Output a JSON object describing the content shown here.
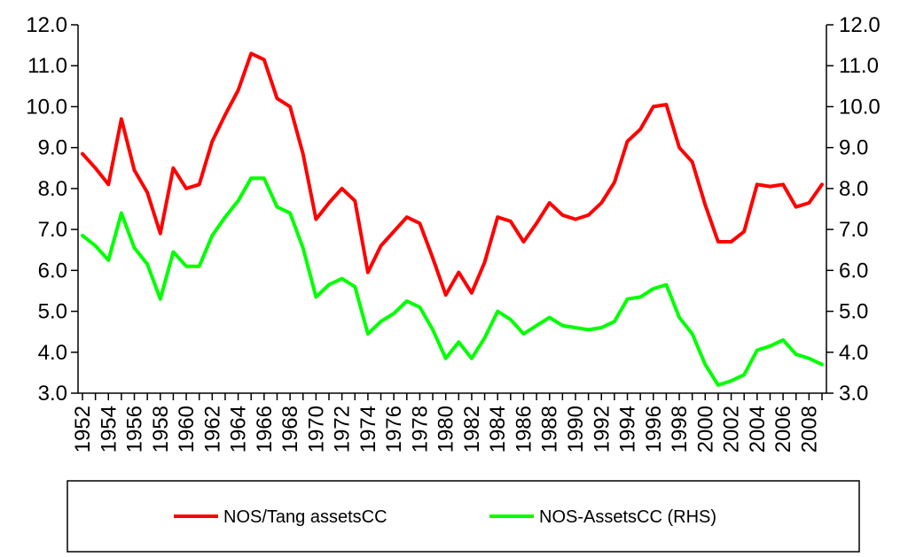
{
  "chart_data": {
    "type": "line",
    "title": "",
    "xlabel": "",
    "ylabel": "",
    "x": [
      1952,
      1953,
      1954,
      1955,
      1956,
      1957,
      1958,
      1959,
      1960,
      1961,
      1962,
      1963,
      1964,
      1965,
      1966,
      1967,
      1968,
      1969,
      1970,
      1971,
      1972,
      1973,
      1974,
      1975,
      1976,
      1977,
      1978,
      1979,
      1980,
      1981,
      1982,
      1983,
      1984,
      1985,
      1986,
      1987,
      1988,
      1989,
      1990,
      1991,
      1992,
      1993,
      1994,
      1995,
      1996,
      1997,
      1998,
      1999,
      2000,
      2001,
      2002,
      2003,
      2004,
      2005,
      2006,
      2007,
      2008,
      2009
    ],
    "x_tick_labels": [
      "1952",
      "1954",
      "1956",
      "1958",
      "1960",
      "1962",
      "1964",
      "1966",
      "1968",
      "1970",
      "1972",
      "1974",
      "1976",
      "1978",
      "1980",
      "1982",
      "1984",
      "1986",
      "1988",
      "1990",
      "1992",
      "1994",
      "1996",
      "1998",
      "2000",
      "2002",
      "2004",
      "2006",
      "2008"
    ],
    "ylim": [
      3.0,
      12.0
    ],
    "y_tick_labels": [
      "3.0",
      "4.0",
      "5.0",
      "6.0",
      "7.0",
      "8.0",
      "9.0",
      "10.0",
      "11.0",
      "12.0"
    ],
    "y2lim": [
      3.0,
      12.0
    ],
    "y2_tick_labels": [
      "3.0",
      "4.0",
      "5.0",
      "6.0",
      "7.0",
      "8.0",
      "9.0",
      "10.0",
      "11.0",
      "12.0"
    ],
    "grid": false,
    "legend_position": "bottom",
    "series": [
      {
        "name": "NOS/Tang assetsCC",
        "color": "#ff0000",
        "axis": "left",
        "values": [
          8.85,
          8.5,
          8.1,
          9.7,
          8.45,
          7.9,
          6.9,
          8.5,
          8.0,
          8.1,
          9.15,
          9.8,
          10.4,
          11.3,
          11.15,
          10.2,
          10.0,
          8.85,
          7.25,
          7.65,
          8.0,
          7.7,
          5.95,
          6.6,
          6.95,
          7.3,
          7.15,
          6.3,
          5.4,
          5.95,
          5.45,
          6.2,
          7.3,
          7.2,
          6.7,
          7.15,
          7.65,
          7.35,
          7.25,
          7.35,
          7.65,
          8.15,
          9.15,
          9.45,
          10.0,
          10.05,
          9.0,
          8.65,
          7.6,
          6.7,
          6.7,
          6.95,
          8.1,
          8.05,
          8.1,
          7.55,
          7.65,
          8.1
        ]
      },
      {
        "name": "NOS-AssetsCC (RHS)",
        "color": "#00ff00",
        "axis": "right",
        "values": [
          6.85,
          6.6,
          6.25,
          7.4,
          6.55,
          6.15,
          5.3,
          6.45,
          6.1,
          6.1,
          6.85,
          7.3,
          7.7,
          8.25,
          8.25,
          7.55,
          7.4,
          6.55,
          5.35,
          5.65,
          5.8,
          5.6,
          4.45,
          4.75,
          4.95,
          5.25,
          5.1,
          4.55,
          3.85,
          4.25,
          3.85,
          4.35,
          5.0,
          4.8,
          4.45,
          4.65,
          4.85,
          4.65,
          4.6,
          4.55,
          4.6,
          4.75,
          5.3,
          5.35,
          5.55,
          5.65,
          4.85,
          4.45,
          3.7,
          3.2,
          3.3,
          3.45,
          4.05,
          4.15,
          4.3,
          3.95,
          3.85,
          3.7
        ]
      }
    ]
  }
}
